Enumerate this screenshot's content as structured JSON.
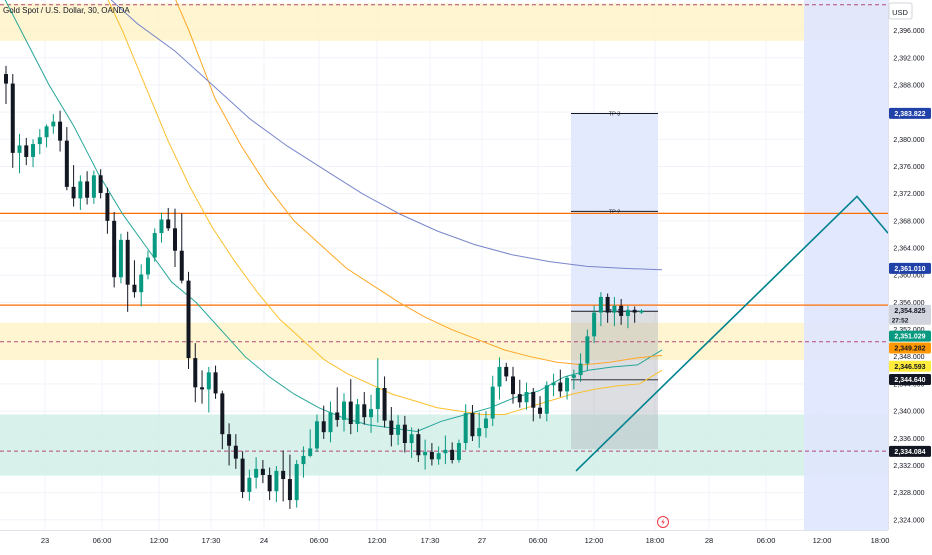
{
  "header": {
    "symbol_title": "Gold Spot / U.S. Dollar, 30, OANDA",
    "currency": "USD"
  },
  "chart_data": {
    "type": "candlestick",
    "title": "Gold Spot / U.S. Dollar, 30, OANDA",
    "ylim": [
      2322.5,
      2400.5
    ],
    "y_ticks": [
      2324,
      2328,
      2332,
      2336,
      2340,
      2344,
      2348,
      2352,
      2356,
      2360,
      2364,
      2368,
      2372,
      2376,
      2380,
      2384,
      2388,
      2392,
      2396
    ],
    "x_ticks": [
      "23",
      "06:00",
      "12:00",
      "17:30",
      "24",
      "06:00",
      "12:00",
      "17:30",
      "27",
      "06:00",
      "12:00",
      "18:00",
      "28",
      "06:00",
      "12:00",
      "18:00"
    ],
    "grid": true,
    "colors": {
      "up": "#089981",
      "down": "#131722",
      "orange": "#ff9800",
      "teal_line": "#00897b",
      "supply_zone": "#fff3c4",
      "demand_zone": "#cfeee6",
      "projection_box": "#dfe6fd"
    },
    "candles": [
      {
        "o": 2389.6,
        "h": 2390.8,
        "l": 2385.2,
        "c": 2388.2
      },
      {
        "o": 2388.2,
        "h": 2389.6,
        "l": 2375.8,
        "c": 2378.0
      },
      {
        "o": 2378.0,
        "h": 2380.8,
        "l": 2375.0,
        "c": 2379.1
      },
      {
        "o": 2379.1,
        "h": 2380.2,
        "l": 2376.2,
        "c": 2377.4
      },
      {
        "o": 2377.4,
        "h": 2380.0,
        "l": 2375.9,
        "c": 2379.3
      },
      {
        "o": 2379.3,
        "h": 2381.5,
        "l": 2377.8,
        "c": 2380.3
      },
      {
        "o": 2380.3,
        "h": 2382.2,
        "l": 2378.8,
        "c": 2381.9
      },
      {
        "o": 2381.9,
        "h": 2383.7,
        "l": 2380.8,
        "c": 2382.6
      },
      {
        "o": 2382.6,
        "h": 2384.2,
        "l": 2378.2,
        "c": 2379.8
      },
      {
        "o": 2379.8,
        "h": 2381.8,
        "l": 2372.5,
        "c": 2373.0
      },
      {
        "o": 2373.0,
        "h": 2376.2,
        "l": 2370.1,
        "c": 2371.3
      },
      {
        "o": 2371.3,
        "h": 2374.7,
        "l": 2369.6,
        "c": 2373.8
      },
      {
        "o": 2373.8,
        "h": 2375.3,
        "l": 2370.4,
        "c": 2371.4
      },
      {
        "o": 2371.4,
        "h": 2375.4,
        "l": 2370.5,
        "c": 2374.7
      },
      {
        "o": 2374.7,
        "h": 2375.6,
        "l": 2371.3,
        "c": 2372.1
      },
      {
        "o": 2372.1,
        "h": 2372.9,
        "l": 2366.1,
        "c": 2368.0
      },
      {
        "o": 2368.0,
        "h": 2369.3,
        "l": 2358.2,
        "c": 2359.7
      },
      {
        "o": 2359.7,
        "h": 2366.1,
        "l": 2358.8,
        "c": 2365.2
      },
      {
        "o": 2365.2,
        "h": 2366.4,
        "l": 2354.6,
        "c": 2358.6
      },
      {
        "o": 2358.6,
        "h": 2362.2,
        "l": 2356.7,
        "c": 2357.5
      },
      {
        "o": 2357.5,
        "h": 2361.6,
        "l": 2355.4,
        "c": 2360.1
      },
      {
        "o": 2360.1,
        "h": 2363.6,
        "l": 2359.4,
        "c": 2362.6
      },
      {
        "o": 2362.6,
        "h": 2366.9,
        "l": 2362.0,
        "c": 2366.2
      },
      {
        "o": 2366.2,
        "h": 2369.2,
        "l": 2364.8,
        "c": 2368.2
      },
      {
        "o": 2368.2,
        "h": 2369.9,
        "l": 2366.5,
        "c": 2366.9
      },
      {
        "o": 2366.9,
        "h": 2369.8,
        "l": 2361.2,
        "c": 2363.6
      },
      {
        "o": 2363.6,
        "h": 2369.1,
        "l": 2358.8,
        "c": 2359.2
      },
      {
        "o": 2359.2,
        "h": 2360.5,
        "l": 2346.2,
        "c": 2347.8
      },
      {
        "o": 2347.8,
        "h": 2350.0,
        "l": 2341.3,
        "c": 2343.5
      },
      {
        "o": 2343.5,
        "h": 2346.0,
        "l": 2341.1,
        "c": 2343.2
      },
      {
        "o": 2343.2,
        "h": 2346.5,
        "l": 2339.8,
        "c": 2345.7
      },
      {
        "o": 2345.7,
        "h": 2346.7,
        "l": 2341.8,
        "c": 2342.6
      },
      {
        "o": 2342.6,
        "h": 2343.0,
        "l": 2334.4,
        "c": 2336.6
      },
      {
        "o": 2336.6,
        "h": 2338.2,
        "l": 2332.0,
        "c": 2334.9
      },
      {
        "o": 2334.9,
        "h": 2336.6,
        "l": 2331.5,
        "c": 2333.0
      },
      {
        "o": 2333.0,
        "h": 2334.1,
        "l": 2327.2,
        "c": 2328.1
      },
      {
        "o": 2328.1,
        "h": 2331.4,
        "l": 2326.8,
        "c": 2330.2
      },
      {
        "o": 2330.2,
        "h": 2333.2,
        "l": 2328.6,
        "c": 2331.5
      },
      {
        "o": 2331.5,
        "h": 2332.8,
        "l": 2329.4,
        "c": 2330.6
      },
      {
        "o": 2330.6,
        "h": 2331.7,
        "l": 2326.9,
        "c": 2328.2
      },
      {
        "o": 2328.2,
        "h": 2331.9,
        "l": 2326.6,
        "c": 2331.2
      },
      {
        "o": 2331.2,
        "h": 2334.2,
        "l": 2326.7,
        "c": 2330.0
      },
      {
        "o": 2330.0,
        "h": 2333.6,
        "l": 2325.6,
        "c": 2326.9
      },
      {
        "o": 2326.9,
        "h": 2332.8,
        "l": 2325.8,
        "c": 2332.2
      },
      {
        "o": 2332.2,
        "h": 2334.8,
        "l": 2330.2,
        "c": 2333.4
      },
      {
        "o": 2333.4,
        "h": 2337.3,
        "l": 2333.2,
        "c": 2334.5
      },
      {
        "o": 2334.5,
        "h": 2339.5,
        "l": 2334.0,
        "c": 2338.5
      },
      {
        "o": 2338.5,
        "h": 2340.8,
        "l": 2335.9,
        "c": 2336.9
      },
      {
        "o": 2336.9,
        "h": 2341.4,
        "l": 2335.4,
        "c": 2339.8
      },
      {
        "o": 2339.8,
        "h": 2343.5,
        "l": 2337.7,
        "c": 2338.7
      },
      {
        "o": 2338.7,
        "h": 2342.6,
        "l": 2337.0,
        "c": 2341.4
      },
      {
        "o": 2341.4,
        "h": 2344.7,
        "l": 2336.6,
        "c": 2338.1
      },
      {
        "o": 2338.1,
        "h": 2341.8,
        "l": 2336.9,
        "c": 2341.0
      },
      {
        "o": 2341.0,
        "h": 2342.8,
        "l": 2338.0,
        "c": 2339.1
      },
      {
        "o": 2339.1,
        "h": 2342.4,
        "l": 2336.8,
        "c": 2340.3
      },
      {
        "o": 2340.3,
        "h": 2347.8,
        "l": 2338.3,
        "c": 2343.4
      },
      {
        "o": 2343.4,
        "h": 2345.1,
        "l": 2337.6,
        "c": 2338.6
      },
      {
        "o": 2338.6,
        "h": 2340.6,
        "l": 2334.8,
        "c": 2336.5
      },
      {
        "o": 2336.5,
        "h": 2339.4,
        "l": 2335.0,
        "c": 2338.0
      },
      {
        "o": 2338.0,
        "h": 2339.3,
        "l": 2333.9,
        "c": 2335.3
      },
      {
        "o": 2335.3,
        "h": 2337.6,
        "l": 2333.1,
        "c": 2336.6
      },
      {
        "o": 2336.6,
        "h": 2337.4,
        "l": 2332.5,
        "c": 2333.5
      },
      {
        "o": 2333.5,
        "h": 2335.8,
        "l": 2331.4,
        "c": 2334.0
      },
      {
        "o": 2334.0,
        "h": 2335.3,
        "l": 2332.0,
        "c": 2332.9
      },
      {
        "o": 2332.9,
        "h": 2334.8,
        "l": 2332.1,
        "c": 2333.8
      },
      {
        "o": 2333.8,
        "h": 2336.4,
        "l": 2332.2,
        "c": 2334.3
      },
      {
        "o": 2334.3,
        "h": 2335.4,
        "l": 2332.3,
        "c": 2332.8
      },
      {
        "o": 2332.8,
        "h": 2335.8,
        "l": 2332.4,
        "c": 2335.3
      },
      {
        "o": 2335.3,
        "h": 2341.0,
        "l": 2334.3,
        "c": 2339.7
      },
      {
        "o": 2339.7,
        "h": 2340.9,
        "l": 2335.6,
        "c": 2336.3
      },
      {
        "o": 2336.3,
        "h": 2339.8,
        "l": 2334.6,
        "c": 2337.5
      },
      {
        "o": 2337.5,
        "h": 2340.0,
        "l": 2336.1,
        "c": 2338.9
      },
      {
        "o": 2338.9,
        "h": 2345.2,
        "l": 2337.8,
        "c": 2343.6
      },
      {
        "o": 2343.6,
        "h": 2347.9,
        "l": 2341.7,
        "c": 2346.5
      },
      {
        "o": 2346.5,
        "h": 2347.1,
        "l": 2344.4,
        "c": 2345.1
      },
      {
        "o": 2345.1,
        "h": 2346.5,
        "l": 2341.1,
        "c": 2342.5
      },
      {
        "o": 2342.5,
        "h": 2344.6,
        "l": 2340.5,
        "c": 2341.3
      },
      {
        "o": 2341.3,
        "h": 2344.2,
        "l": 2340.2,
        "c": 2342.8
      },
      {
        "o": 2342.8,
        "h": 2343.4,
        "l": 2338.5,
        "c": 2340.5
      },
      {
        "o": 2340.5,
        "h": 2342.2,
        "l": 2338.9,
        "c": 2339.6
      },
      {
        "o": 2339.6,
        "h": 2344.4,
        "l": 2338.5,
        "c": 2343.8
      },
      {
        "o": 2343.8,
        "h": 2345.5,
        "l": 2342.2,
        "c": 2344.2
      },
      {
        "o": 2344.2,
        "h": 2346.1,
        "l": 2342.1,
        "c": 2342.9
      },
      {
        "o": 2342.9,
        "h": 2345.2,
        "l": 2341.7,
        "c": 2344.9
      },
      {
        "o": 2344.9,
        "h": 2346.1,
        "l": 2343.2,
        "c": 2345.3
      },
      {
        "o": 2345.3,
        "h": 2348.5,
        "l": 2344.3,
        "c": 2347.0
      },
      {
        "o": 2347.0,
        "h": 2352.0,
        "l": 2346.0,
        "c": 2351.0
      },
      {
        "o": 2351.0,
        "h": 2355.5,
        "l": 2350.0,
        "c": 2354.5
      },
      {
        "o": 2354.5,
        "h": 2357.5,
        "l": 2352.5,
        "c": 2356.8
      },
      {
        "o": 2356.8,
        "h": 2357.3,
        "l": 2353.0,
        "c": 2354.5
      },
      {
        "o": 2354.5,
        "h": 2356.8,
        "l": 2352.5,
        "c": 2355.5
      },
      {
        "o": 2355.5,
        "h": 2356.5,
        "l": 2352.7,
        "c": 2354.0
      },
      {
        "o": 2354.0,
        "h": 2355.5,
        "l": 2352.2,
        "c": 2354.9
      },
      {
        "o": 2354.9,
        "h": 2355.4,
        "l": 2353.0,
        "c": 2354.5
      },
      {
        "o": 2354.5,
        "h": 2355.0,
        "l": 2354.3,
        "c": 2354.8
      }
    ],
    "moving_averages": [
      {
        "color": "#26a69a",
        "role": "fast",
        "values": [
          2402.0,
          2395.0,
          2388.0,
          2382.0,
          2375.0,
          2369.0,
          2364.0,
          2359.0,
          2356.0,
          2352.0,
          2348.0,
          2345.0,
          2342.5,
          2340.5,
          2339.0,
          2338.0,
          2337.5,
          2337.0,
          2338.5,
          2339.5,
          2340.5,
          2342.0,
          2343.0,
          2345.0,
          2346.0,
          2346.5,
          2346.8,
          2349.0
        ]
      },
      {
        "color": "#fbc02d",
        "role": "medium",
        "values": [
          2418.0,
          2411.0,
          2403.0,
          2396.0,
          2388.0,
          2380.0,
          2373.0,
          2367.0,
          2362.0,
          2357.5,
          2353.5,
          2350.5,
          2347.5,
          2345.5,
          2344.0,
          2342.5,
          2341.5,
          2340.5,
          2340.0,
          2339.5,
          2339.5,
          2340.5,
          2341.5,
          2342.5,
          2343.2,
          2343.7,
          2344.0,
          2346.0
        ]
      },
      {
        "color": "#ffa726",
        "role": "slow",
        "values": [
          2420.0,
          2412.0,
          2405.0,
          2396.0,
          2386.0,
          2379.0,
          2373.0,
          2368.0,
          2364.5,
          2361.0,
          2358.5,
          2356.0,
          2353.8,
          2352.0,
          2350.5,
          2349.0,
          2348.0,
          2347.2,
          2346.8,
          2347.2,
          2347.8,
          2348.2
        ]
      },
      {
        "color": "#7986cb",
        "role": "slowest",
        "values": [
          2402.0,
          2397.0,
          2393.0,
          2388.0,
          2383.0,
          2379.0,
          2375.5,
          2372.0,
          2369.0,
          2366.5,
          2364.5,
          2363.0,
          2362.0,
          2361.3,
          2361.0,
          2360.8
        ]
      }
    ],
    "zones": {
      "supply_top": [
        2394.5,
        2400.0
      ],
      "supply_bottom": [
        2347.5,
        2353.0
      ],
      "demand": [
        2330.5,
        2339.5
      ]
    },
    "horizontal_levels": [
      {
        "kind": "solid_orange",
        "price": 2369.1
      },
      {
        "kind": "solid_orange",
        "price": 2355.6
      },
      {
        "kind": "dashed_purple",
        "price": 2399.8
      },
      {
        "kind": "dashed_purple",
        "price": 2350.2
      },
      {
        "kind": "dashed_purple",
        "price": 2334.1
      }
    ],
    "position_tool": {
      "labels": [
        "TP 3",
        "TP 2",
        "TP 1"
      ],
      "tp_prices": [
        2383.8,
        2369.4,
        2354.7
      ],
      "entry": 2354.7,
      "stop_level": 2344.6,
      "stop_box_bottom": 2334.4
    },
    "projection_path": {
      "points": [
        [
          2331.2,
          0
        ],
        [
          2371.6,
          1
        ],
        [
          2366.2,
          2
        ]
      ]
    },
    "price_tags": [
      {
        "value": "2,383.822",
        "bg": "#2041a8",
        "fg": "#ffffff",
        "price": 2383.82
      },
      {
        "value": "2,361.010",
        "bg": "#2041a8",
        "fg": "#ffffff",
        "price": 2361.01
      },
      {
        "value": "2,354.825",
        "bg": "#d1d4dc",
        "fg": "#131722",
        "price": 2354.83,
        "sub": "27:52"
      },
      {
        "value": "2,351.029",
        "bg": "#089981",
        "fg": "#ffffff",
        "price": 2351.03
      },
      {
        "value": "2,349.282",
        "bg": "#ff9800",
        "fg": "#131722",
        "price": 2349.28
      },
      {
        "value": "2,346.593",
        "bg": "#ffeb3b",
        "fg": "#131722",
        "price": 2346.59
      },
      {
        "value": "2,344.640",
        "bg": "#131722",
        "fg": "#ffffff",
        "price": 2344.64
      },
      {
        "value": "2,334.084",
        "bg": "#131722",
        "fg": "#ffffff",
        "price": 2334.08
      }
    ]
  }
}
